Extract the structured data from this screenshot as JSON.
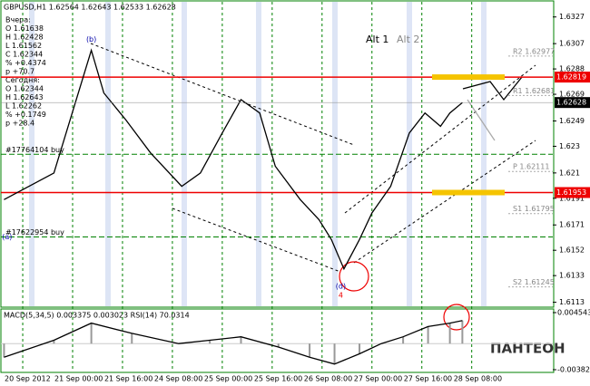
{
  "chart_data": {
    "type": "line",
    "title": "GBPUSD,H1  1.62564 1.62643 1.62533 1.62628",
    "info_lines": [
      "Вчера:",
      "O 1.61638",
      "H 1.62428",
      "L 1.61562",
      "C 1.62344",
      "% +0.4374",
      "p +70.7",
      "Сегодня:",
      "O 1.62344",
      "H 1.62643",
      "L 1.62262",
      "% +0.1749",
      "p +28.4"
    ],
    "orders": [
      {
        "label": "#17764104 buy",
        "value": 1.6224
      },
      {
        "label": "#17622954 buy",
        "value": 1.6162
      }
    ],
    "legend_items": [
      "Alt 1",
      "Alt 2"
    ],
    "wave_labels": [
      {
        "label": "(b)",
        "x": 22,
        "value": 1.631
      },
      {
        "label": "(d)",
        "x": 102,
        "value": 1.6125
      },
      {
        "label": "(a)",
        "x": -5,
        "value": 1.6162
      },
      {
        "label": "4",
        "x": 102,
        "value": 1.6118
      }
    ],
    "xlim": [
      -7,
      170
    ],
    "xticks": [
      {
        "value": 0,
        "label": "20 Sep 2012"
      },
      {
        "value": 16,
        "label": "21 Sep 00:00"
      },
      {
        "value": 32,
        "label": "21 Sep 16:00"
      },
      {
        "value": 48,
        "label": "24 Sep 08:00"
      },
      {
        "value": 64,
        "label": "25 Sep 00:00"
      },
      {
        "value": 80,
        "label": "25 Sep 16:00"
      },
      {
        "value": 96,
        "label": "26 Sep 08:00"
      },
      {
        "value": 112,
        "label": "27 Sep 00:00"
      },
      {
        "value": 128,
        "label": "27 Sep 16:00"
      },
      {
        "value": 144,
        "label": "28 Sep 08:00"
      }
    ],
    "ylim": [
      1.611,
      1.6337
    ],
    "yticks": [
      1.6327,
      1.6307,
      1.6288,
      1.6269,
      1.6249,
      1.623,
      1.621,
      1.6191,
      1.6171,
      1.6152,
      1.6133,
      1.6113
    ],
    "grid": true,
    "series": [
      {
        "name": "GBPUSD",
        "color": "#000000",
        "x": [
          -6,
          10,
          22,
          26,
          33,
          41,
          51,
          57,
          64,
          70,
          76,
          81,
          89,
          95,
          99,
          103,
          108,
          112,
          118,
          124,
          129,
          134,
          137,
          141
        ],
        "values": [
          1.619,
          1.621,
          1.6302,
          1.627,
          1.625,
          1.6225,
          1.62,
          1.621,
          1.624,
          1.6265,
          1.6255,
          1.6215,
          1.619,
          1.6175,
          1.616,
          1.6138,
          1.616,
          1.618,
          1.62,
          1.624,
          1.6255,
          1.6245,
          1.6255,
          1.62628
        ]
      }
    ],
    "current_price": {
      "label": "1.62628",
      "value": 1.62628
    },
    "red_levels": [
      {
        "label": "1.62819",
        "value": 1.62819
      },
      {
        "label": "1.61953",
        "value": 1.61953
      }
    ],
    "pivot_levels": [
      {
        "label": "R2 1.62977",
        "value": 1.62977
      },
      {
        "label": "R1 1.62681",
        "value": 1.62681
      },
      {
        "label": "P 1.62111",
        "value": 1.62111
      },
      {
        "label": "S1 1.61795",
        "value": 1.61795
      },
      {
        "label": "S2 1.61245",
        "value": 1.61245
      }
    ],
    "indicator": {
      "title": "MACD(5,34,5) 0.003375 0.003023  RSI(14) 70.0314",
      "ylim": [
        -0.00382,
        0.004543
      ],
      "yticks": [
        {
          "value": 0.004543,
          "label": "0.004543"
        },
        {
          "value": -0.00382,
          "label": "-0.00382"
        }
      ],
      "color": "#000000",
      "x": [
        -6,
        10,
        22,
        35,
        50,
        60,
        70,
        82,
        92,
        100,
        108,
        115,
        122,
        130,
        137,
        141
      ],
      "values": [
        -0.002,
        0.0005,
        0.003,
        0.0015,
        0,
        0.0005,
        0.001,
        -0.0005,
        -0.002,
        -0.003,
        -0.0015,
        0,
        0.001,
        0.0025,
        0.003,
        0.003375
      ]
    },
    "logo": "ПАНТЕОН"
  }
}
